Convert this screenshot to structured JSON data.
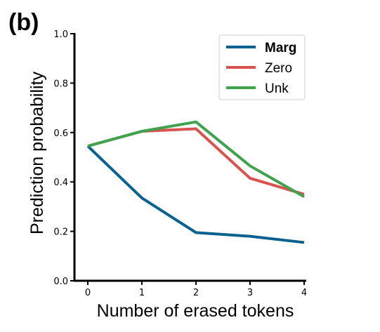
{
  "chart_data": {
    "type": "line",
    "panel_label": "(b)",
    "xlabel": "Number of erased tokens",
    "ylabel": "Prediction probability",
    "x": [
      0,
      1,
      2,
      3,
      4
    ],
    "x_tick_labels": [
      "0",
      "1",
      "2",
      "3",
      "4"
    ],
    "y_ticks": [
      0.0,
      0.2,
      0.4,
      0.6,
      0.8,
      1.0
    ],
    "y_tick_labels": [
      "0.0",
      "0.2",
      "0.4",
      "0.6",
      "0.8",
      "1.0"
    ],
    "xlim": [
      -0.2,
      4.1
    ],
    "ylim": [
      0.0,
      1.0
    ],
    "grid": false,
    "legend_position": "top-right",
    "series": [
      {
        "name": "Marg",
        "color": "#0a6290",
        "bold_label": true,
        "values": [
          0.545,
          0.335,
          0.195,
          0.18,
          0.155
        ]
      },
      {
        "name": "Zero",
        "color": "#d9534f",
        "bold_label": false,
        "values": [
          0.545,
          0.605,
          0.615,
          0.415,
          0.35
        ]
      },
      {
        "name": "Unk",
        "color": "#3fa34d",
        "bold_label": false,
        "values": [
          0.545,
          0.605,
          0.643,
          0.465,
          0.34
        ]
      }
    ]
  }
}
